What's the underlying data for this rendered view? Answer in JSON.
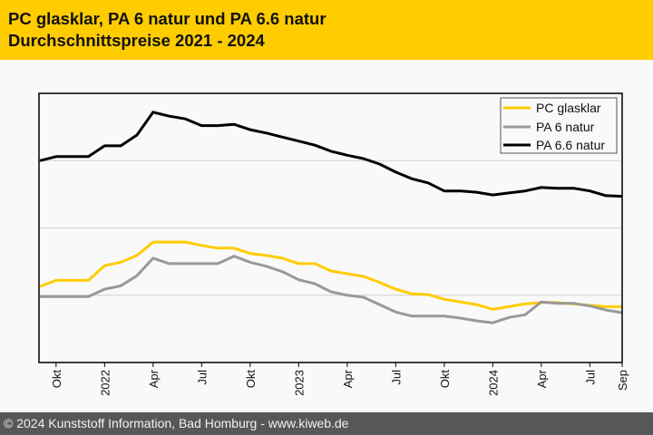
{
  "header": {
    "title_line1": "PC glasklar, PA 6 natur und PA 6.6 natur",
    "title_line2": "Durchschnittspreise 2021 - 2024",
    "background_color": "#ffcc00"
  },
  "footer": {
    "text": "© 2024 Kunststoff Information, Bad Homburg - www.kiweb.de",
    "background_color": "#575757"
  },
  "chart_data": {
    "type": "line",
    "title": "PC glasklar, PA 6 natur und PA 6.6 natur – Durchschnittspreise 2021 - 2024",
    "xlabel": "",
    "ylabel": "",
    "y_axis_labels_shown": false,
    "ylim": [
      0,
      4
    ],
    "y_gridlines": [
      1,
      2,
      3
    ],
    "grid": "horizontal",
    "legend_position": "top-right",
    "x": [
      "2021-09",
      "2021-10",
      "2021-11",
      "2021-12",
      "2022-01",
      "2022-02",
      "2022-03",
      "2022-04",
      "2022-05",
      "2022-06",
      "2022-07",
      "2022-08",
      "2022-09",
      "2022-10",
      "2022-11",
      "2022-12",
      "2023-01",
      "2023-02",
      "2023-03",
      "2023-04",
      "2023-05",
      "2023-06",
      "2023-07",
      "2023-08",
      "2023-09",
      "2023-10",
      "2023-11",
      "2023-12",
      "2024-01",
      "2024-02",
      "2024-03",
      "2024-04",
      "2024-05",
      "2024-06",
      "2024-07",
      "2024-08",
      "2024-09"
    ],
    "x_ticks": [
      {
        "index": 1,
        "label": "Okt"
      },
      {
        "index": 4,
        "label": "2022"
      },
      {
        "index": 7,
        "label": "Apr"
      },
      {
        "index": 10,
        "label": "Jul"
      },
      {
        "index": 13,
        "label": "Okt"
      },
      {
        "index": 16,
        "label": "2023"
      },
      {
        "index": 19,
        "label": "Apr"
      },
      {
        "index": 22,
        "label": "Jul"
      },
      {
        "index": 25,
        "label": "Okt"
      },
      {
        "index": 28,
        "label": "2024"
      },
      {
        "index": 31,
        "label": "Apr"
      },
      {
        "index": 34,
        "label": "Jul"
      },
      {
        "index": 36,
        "label": "Sep"
      }
    ],
    "series": [
      {
        "name": "PC glasklar",
        "color": "#ffcc00",
        "values": [
          1.13,
          1.22,
          1.22,
          1.22,
          1.44,
          1.49,
          1.59,
          1.79,
          1.79,
          1.79,
          1.74,
          1.7,
          1.7,
          1.62,
          1.59,
          1.55,
          1.47,
          1.47,
          1.36,
          1.32,
          1.28,
          1.19,
          1.09,
          1.02,
          1.01,
          0.94,
          0.9,
          0.86,
          0.79,
          0.83,
          0.87,
          0.89,
          0.89,
          0.87,
          0.85,
          0.83,
          0.83
        ]
      },
      {
        "name": "PA 6 natur",
        "color": "#999999",
        "values": [
          0.98,
          0.98,
          0.98,
          0.98,
          1.09,
          1.14,
          1.29,
          1.55,
          1.47,
          1.47,
          1.47,
          1.47,
          1.58,
          1.49,
          1.43,
          1.35,
          1.23,
          1.17,
          1.05,
          1.0,
          0.97,
          0.86,
          0.75,
          0.69,
          0.69,
          0.69,
          0.66,
          0.62,
          0.59,
          0.67,
          0.71,
          0.9,
          0.88,
          0.88,
          0.84,
          0.78,
          0.74
        ]
      },
      {
        "name": "PA 6.6 natur",
        "color": "#000000",
        "values": [
          3.0,
          3.06,
          3.06,
          3.06,
          3.22,
          3.22,
          3.38,
          3.72,
          3.66,
          3.62,
          3.52,
          3.52,
          3.54,
          3.46,
          3.41,
          3.35,
          3.29,
          3.23,
          3.14,
          3.08,
          3.03,
          2.95,
          2.83,
          2.73,
          2.67,
          2.55,
          2.55,
          2.53,
          2.49,
          2.52,
          2.55,
          2.6,
          2.59,
          2.59,
          2.55,
          2.48,
          2.47
        ]
      }
    ]
  }
}
